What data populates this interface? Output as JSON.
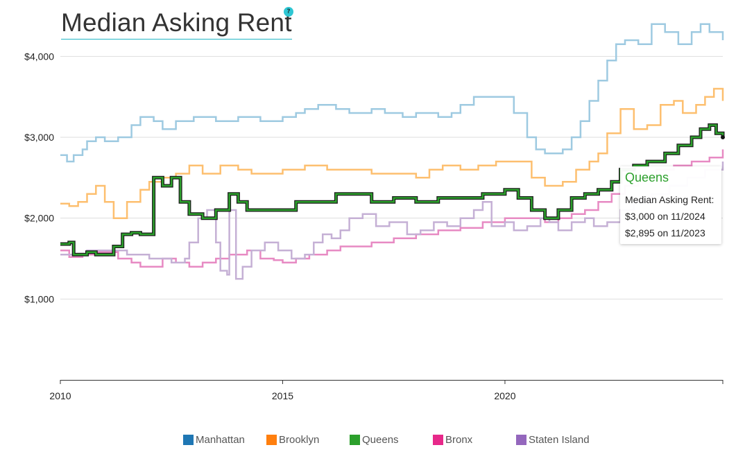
{
  "title": "Median Asking Rent",
  "help_label": "?",
  "y_tick_labels": [
    "$1,000",
    "$2,000",
    "$3,000",
    "$4,000"
  ],
  "x_tick_labels": [
    "2010",
    "2015",
    "2020"
  ],
  "legend": [
    {
      "name": "Manhattan",
      "color": "#1f77b4"
    },
    {
      "name": "Brooklyn",
      "color": "#ff7f0e"
    },
    {
      "name": "Queens",
      "color": "#2ca02c"
    },
    {
      "name": "Bronx",
      "color": "#e7298a"
    },
    {
      "name": "Staten Island",
      "color": "#9467bd"
    }
  ],
  "tooltip": {
    "series": "Queens",
    "label": "Median Asking Rent:",
    "current": "$3,000 on 11/2024",
    "previous": "$2,895 on 11/2023"
  },
  "chart_data": {
    "type": "line",
    "step": true,
    "title": "Median Asking Rent",
    "xlabel": "",
    "ylabel": "",
    "xlim": [
      2010.0,
      2024.9
    ],
    "ylim": [
      0,
      4500
    ],
    "y_ticks": [
      1000,
      2000,
      3000,
      4000
    ],
    "x_ticks": [
      2010,
      2015,
      2020
    ],
    "grid": "horizontal",
    "legend_position": "bottom",
    "highlighted_series": "Queens",
    "series": [
      {
        "name": "Manhattan",
        "color": "#9ecae1",
        "points": [
          [
            2010.0,
            2780
          ],
          [
            2010.15,
            2700
          ],
          [
            2010.3,
            2780
          ],
          [
            2010.5,
            2850
          ],
          [
            2010.6,
            2950
          ],
          [
            2010.8,
            3000
          ],
          [
            2011.0,
            2950
          ],
          [
            2011.3,
            3000
          ],
          [
            2011.6,
            3150
          ],
          [
            2011.8,
            3250
          ],
          [
            2012.1,
            3200
          ],
          [
            2012.3,
            3100
          ],
          [
            2012.6,
            3200
          ],
          [
            2013.0,
            3250
          ],
          [
            2013.5,
            3200
          ],
          [
            2014.0,
            3250
          ],
          [
            2014.5,
            3200
          ],
          [
            2015.0,
            3250
          ],
          [
            2015.3,
            3300
          ],
          [
            2015.5,
            3350
          ],
          [
            2015.8,
            3400
          ],
          [
            2016.2,
            3350
          ],
          [
            2016.5,
            3300
          ],
          [
            2017.0,
            3350
          ],
          [
            2017.3,
            3300
          ],
          [
            2017.7,
            3250
          ],
          [
            2018.0,
            3300
          ],
          [
            2018.5,
            3250
          ],
          [
            2018.8,
            3300
          ],
          [
            2019.0,
            3400
          ],
          [
            2019.3,
            3500
          ],
          [
            2019.8,
            3500
          ],
          [
            2020.2,
            3300
          ],
          [
            2020.5,
            3000
          ],
          [
            2020.7,
            2850
          ],
          [
            2020.9,
            2800
          ],
          [
            2021.3,
            2850
          ],
          [
            2021.5,
            3000
          ],
          [
            2021.7,
            3200
          ],
          [
            2021.9,
            3450
          ],
          [
            2022.1,
            3700
          ],
          [
            2022.3,
            3950
          ],
          [
            2022.5,
            4150
          ],
          [
            2022.7,
            4200
          ],
          [
            2023.0,
            4150
          ],
          [
            2023.3,
            4400
          ],
          [
            2023.6,
            4300
          ],
          [
            2023.9,
            4150
          ],
          [
            2024.2,
            4300
          ],
          [
            2024.4,
            4400
          ],
          [
            2024.6,
            4300
          ],
          [
            2024.9,
            4200
          ]
        ]
      },
      {
        "name": "Brooklyn",
        "color": "#fdbf6f",
        "points": [
          [
            2010.0,
            2180
          ],
          [
            2010.2,
            2150
          ],
          [
            2010.4,
            2200
          ],
          [
            2010.6,
            2300
          ],
          [
            2010.8,
            2400
          ],
          [
            2011.0,
            2200
          ],
          [
            2011.2,
            2000
          ],
          [
            2011.5,
            2200
          ],
          [
            2011.8,
            2350
          ],
          [
            2012.0,
            2450
          ],
          [
            2012.3,
            2500
          ],
          [
            2012.6,
            2550
          ],
          [
            2012.9,
            2650
          ],
          [
            2013.2,
            2550
          ],
          [
            2013.6,
            2650
          ],
          [
            2014.0,
            2600
          ],
          [
            2014.3,
            2550
          ],
          [
            2014.7,
            2550
          ],
          [
            2015.0,
            2600
          ],
          [
            2015.5,
            2650
          ],
          [
            2016.0,
            2600
          ],
          [
            2016.5,
            2600
          ],
          [
            2017.0,
            2550
          ],
          [
            2017.5,
            2550
          ],
          [
            2018.0,
            2500
          ],
          [
            2018.3,
            2600
          ],
          [
            2018.6,
            2650
          ],
          [
            2019.0,
            2600
          ],
          [
            2019.4,
            2650
          ],
          [
            2019.8,
            2700
          ],
          [
            2020.3,
            2700
          ],
          [
            2020.6,
            2500
          ],
          [
            2020.9,
            2400
          ],
          [
            2021.3,
            2450
          ],
          [
            2021.6,
            2600
          ],
          [
            2021.9,
            2700
          ],
          [
            2022.1,
            2800
          ],
          [
            2022.3,
            3050
          ],
          [
            2022.6,
            3350
          ],
          [
            2022.9,
            3100
          ],
          [
            2023.2,
            3150
          ],
          [
            2023.5,
            3400
          ],
          [
            2023.8,
            3450
          ],
          [
            2024.0,
            3300
          ],
          [
            2024.3,
            3400
          ],
          [
            2024.5,
            3500
          ],
          [
            2024.7,
            3600
          ],
          [
            2024.9,
            3450
          ]
        ]
      },
      {
        "name": "Queens",
        "color": "#2ca02c",
        "points": [
          [
            2010.0,
            1680
          ],
          [
            2010.2,
            1700
          ],
          [
            2010.3,
            1550
          ],
          [
            2010.6,
            1580
          ],
          [
            2010.8,
            1550
          ],
          [
            2011.0,
            1550
          ],
          [
            2011.2,
            1650
          ],
          [
            2011.4,
            1800
          ],
          [
            2011.6,
            1820
          ],
          [
            2011.8,
            1800
          ],
          [
            2012.0,
            1800
          ],
          [
            2012.1,
            2500
          ],
          [
            2012.3,
            2400
          ],
          [
            2012.5,
            2500
          ],
          [
            2012.7,
            2200
          ],
          [
            2012.9,
            2050
          ],
          [
            2013.2,
            2000
          ],
          [
            2013.5,
            2100
          ],
          [
            2013.8,
            2300
          ],
          [
            2014.0,
            2200
          ],
          [
            2014.2,
            2100
          ],
          [
            2014.5,
            2100
          ],
          [
            2015.0,
            2100
          ],
          [
            2015.3,
            2200
          ],
          [
            2015.8,
            2200
          ],
          [
            2016.2,
            2300
          ],
          [
            2016.6,
            2300
          ],
          [
            2017.0,
            2200
          ],
          [
            2017.5,
            2250
          ],
          [
            2018.0,
            2200
          ],
          [
            2018.5,
            2250
          ],
          [
            2019.0,
            2250
          ],
          [
            2019.5,
            2300
          ],
          [
            2020.0,
            2350
          ],
          [
            2020.3,
            2250
          ],
          [
            2020.6,
            2100
          ],
          [
            2020.9,
            2000
          ],
          [
            2021.2,
            2100
          ],
          [
            2021.5,
            2250
          ],
          [
            2021.8,
            2300
          ],
          [
            2022.1,
            2350
          ],
          [
            2022.4,
            2450
          ],
          [
            2022.6,
            2600
          ],
          [
            2022.9,
            2650
          ],
          [
            2023.2,
            2700
          ],
          [
            2023.6,
            2800
          ],
          [
            2023.9,
            2900
          ],
          [
            2024.2,
            3000
          ],
          [
            2024.4,
            3100
          ],
          [
            2024.6,
            3150
          ],
          [
            2024.75,
            3050
          ],
          [
            2024.9,
            3000
          ]
        ]
      },
      {
        "name": "Bronx",
        "color": "#e78ac3",
        "points": [
          [
            2010.0,
            1600
          ],
          [
            2010.2,
            1520
          ],
          [
            2010.5,
            1550
          ],
          [
            2010.8,
            1580
          ],
          [
            2011.0,
            1580
          ],
          [
            2011.3,
            1500
          ],
          [
            2011.6,
            1450
          ],
          [
            2011.8,
            1400
          ],
          [
            2012.0,
            1400
          ],
          [
            2012.3,
            1500
          ],
          [
            2012.6,
            1450
          ],
          [
            2012.9,
            1400
          ],
          [
            2013.2,
            1450
          ],
          [
            2013.5,
            1500
          ],
          [
            2013.8,
            1550
          ],
          [
            2014.2,
            1600
          ],
          [
            2014.5,
            1500
          ],
          [
            2014.8,
            1480
          ],
          [
            2015.0,
            1450
          ],
          [
            2015.3,
            1500
          ],
          [
            2015.6,
            1550
          ],
          [
            2016.0,
            1600
          ],
          [
            2016.3,
            1650
          ],
          [
            2016.6,
            1650
          ],
          [
            2017.0,
            1700
          ],
          [
            2017.5,
            1750
          ],
          [
            2018.0,
            1800
          ],
          [
            2018.5,
            1850
          ],
          [
            2019.0,
            1880
          ],
          [
            2019.5,
            1950
          ],
          [
            2020.0,
            2000
          ],
          [
            2020.5,
            2000
          ],
          [
            2020.9,
            1950
          ],
          [
            2021.2,
            2000
          ],
          [
            2021.5,
            2050
          ],
          [
            2021.8,
            2100
          ],
          [
            2022.1,
            2200
          ],
          [
            2022.4,
            2300
          ],
          [
            2022.7,
            2400
          ],
          [
            2023.0,
            2500
          ],
          [
            2023.4,
            2600
          ],
          [
            2023.8,
            2650
          ],
          [
            2024.2,
            2700
          ],
          [
            2024.6,
            2750
          ],
          [
            2024.9,
            2850
          ]
        ]
      },
      {
        "name": "Staten Island",
        "color": "#c5b0d5",
        "points": [
          [
            2010.0,
            1550
          ],
          [
            2010.3,
            1550
          ],
          [
            2010.6,
            1600
          ],
          [
            2011.0,
            1600
          ],
          [
            2011.5,
            1550
          ],
          [
            2012.0,
            1500
          ],
          [
            2012.5,
            1450
          ],
          [
            2012.8,
            1500
          ],
          [
            2012.9,
            1700
          ],
          [
            2013.1,
            2000
          ],
          [
            2013.3,
            2100
          ],
          [
            2013.5,
            1700
          ],
          [
            2013.6,
            1350
          ],
          [
            2013.75,
            1300
          ],
          [
            2013.8,
            2100
          ],
          [
            2013.95,
            1250
          ],
          [
            2014.1,
            1400
          ],
          [
            2014.3,
            1600
          ],
          [
            2014.6,
            1700
          ],
          [
            2014.9,
            1600
          ],
          [
            2015.2,
            1500
          ],
          [
            2015.5,
            1550
          ],
          [
            2015.7,
            1700
          ],
          [
            2015.9,
            1800
          ],
          [
            2016.1,
            1750
          ],
          [
            2016.3,
            1850
          ],
          [
            2016.5,
            2000
          ],
          [
            2016.8,
            2050
          ],
          [
            2017.1,
            1900
          ],
          [
            2017.4,
            1950
          ],
          [
            2017.8,
            1800
          ],
          [
            2018.1,
            1850
          ],
          [
            2018.4,
            1950
          ],
          [
            2018.7,
            1900
          ],
          [
            2019.0,
            2000
          ],
          [
            2019.3,
            2100
          ],
          [
            2019.5,
            2200
          ],
          [
            2019.7,
            1900
          ],
          [
            2020.0,
            1950
          ],
          [
            2020.2,
            1850
          ],
          [
            2020.5,
            1900
          ],
          [
            2020.8,
            2000
          ],
          [
            2021.0,
            1950
          ],
          [
            2021.2,
            1850
          ],
          [
            2021.5,
            1950
          ],
          [
            2021.8,
            2000
          ],
          [
            2022.0,
            1900
          ],
          [
            2022.3,
            1950
          ],
          [
            2022.6,
            2100
          ],
          [
            2022.9,
            2200
          ],
          [
            2023.3,
            2300
          ],
          [
            2023.7,
            2400
          ],
          [
            2024.1,
            2500
          ],
          [
            2024.5,
            2600
          ],
          [
            2024.9,
            2700
          ]
        ]
      }
    ]
  }
}
